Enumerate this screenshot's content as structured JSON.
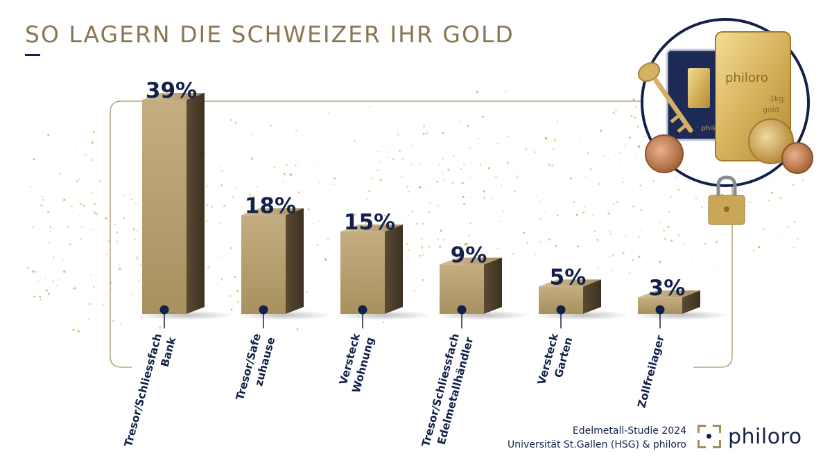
{
  "header": {
    "title": "SO LAGERN DIE SCHWEIZER IHR GOLD"
  },
  "chart_data": {
    "type": "bar",
    "title": "SO LAGERN DIE SCHWEIZER IHR GOLD",
    "categories": [
      [
        "Tresor/Schliessfach",
        "Bank"
      ],
      [
        "Tresor/Safe",
        "zuhause"
      ],
      [
        "Versteck",
        "Wohnung"
      ],
      [
        "Tresor/Schliessfach",
        "Edelmetallhändler"
      ],
      [
        "Versteck",
        "Garten"
      ],
      [
        "Zollfreilager"
      ]
    ],
    "values": [
      39,
      18,
      15,
      9,
      5,
      3
    ],
    "value_labels": [
      "39%",
      "18%",
      "15%",
      "9%",
      "5%",
      "3%"
    ],
    "unit": "%",
    "ylim": [
      0,
      40
    ],
    "xlabel": "",
    "ylabel": ""
  },
  "footer": {
    "line1": "Edelmetall-Studie 2024",
    "line2": "Universität St.Gallen (HSG) & philoro"
  },
  "logo": {
    "text": "philoro"
  },
  "colors": {
    "gold_front": "#b59f72",
    "gold_side": "#4a3d2a",
    "navy": "#13214a",
    "frame": "#a99468"
  }
}
